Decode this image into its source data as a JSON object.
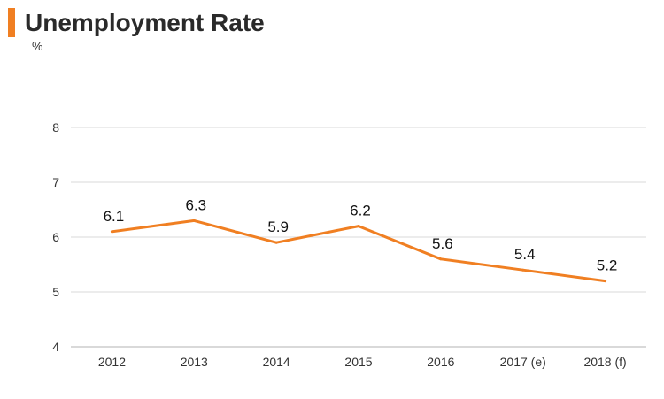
{
  "header": {
    "title": "Unemployment Rate",
    "unit": "%"
  },
  "colors": {
    "accent": "#f07f22",
    "grid": "#d9d9d9",
    "axis": "#b3b3b3",
    "series": "#f07f22"
  },
  "chart_data": {
    "type": "line",
    "title": "Unemployment Rate",
    "xlabel": "",
    "ylabel": "%",
    "categories": [
      "2012",
      "2013",
      "2014",
      "2015",
      "2016",
      "2017 (e)",
      "2018 (f)"
    ],
    "series": [
      {
        "values": [
          6.1,
          6.3,
          5.9,
          6.2,
          5.6,
          5.4,
          5.2
        ]
      }
    ],
    "data_labels": [
      "6.1",
      "6.3",
      "5.9",
      "6.2",
      "5.6",
      "5.4",
      "5.2"
    ],
    "ylim": [
      4,
      8
    ],
    "yticks": [
      "4",
      "5",
      "6",
      "7",
      "8"
    ],
    "grid": true,
    "legend": "none"
  }
}
